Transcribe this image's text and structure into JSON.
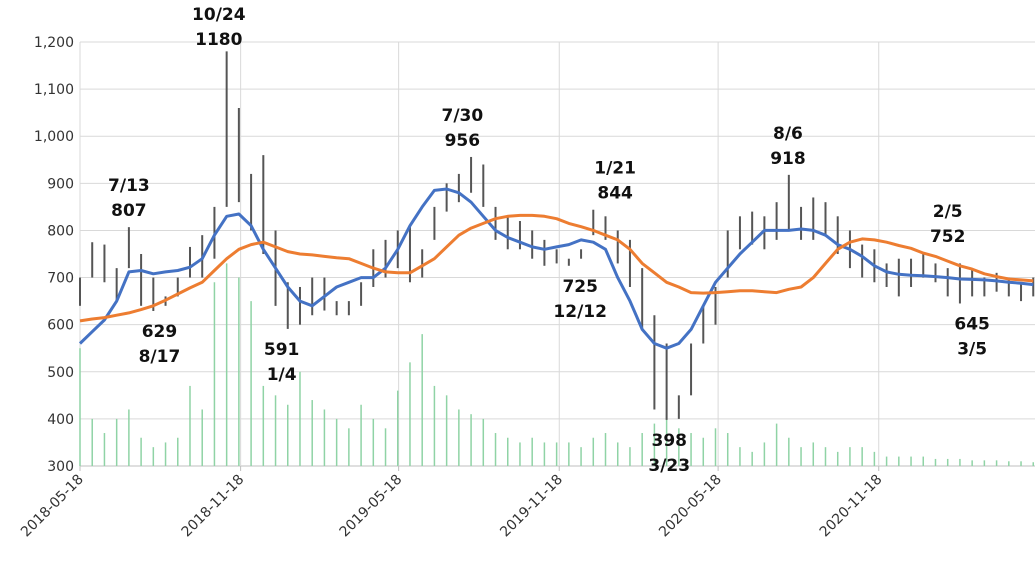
{
  "chart_data": {
    "type": "stock",
    "x": [
      "2018-05-18",
      "2018-06-01",
      "2018-06-15",
      "2018-06-29",
      "2018-07-13",
      "2018-07-27",
      "2018-08-10",
      "2018-08-24",
      "2018-09-07",
      "2018-09-21",
      "2018-10-05",
      "2018-10-19",
      "2018-11-02",
      "2018-11-16",
      "2018-11-30",
      "2018-12-14",
      "2018-12-28",
      "2019-01-11",
      "2019-01-25",
      "2019-02-08",
      "2019-02-22",
      "2019-03-08",
      "2019-03-22",
      "2019-04-05",
      "2019-04-19",
      "2019-05-03",
      "2019-05-17",
      "2019-05-31",
      "2019-06-14",
      "2019-06-28",
      "2019-07-12",
      "2019-07-26",
      "2019-08-09",
      "2019-08-23",
      "2019-09-06",
      "2019-09-20",
      "2019-10-04",
      "2019-10-18",
      "2019-11-01",
      "2019-11-15",
      "2019-11-29",
      "2019-12-13",
      "2019-12-27",
      "2020-01-10",
      "2020-01-24",
      "2020-02-07",
      "2020-02-21",
      "2020-03-06",
      "2020-03-20",
      "2020-04-03",
      "2020-04-17",
      "2020-05-01",
      "2020-05-15",
      "2020-05-29",
      "2020-06-12",
      "2020-06-26",
      "2020-07-10",
      "2020-07-24",
      "2020-08-07",
      "2020-08-21",
      "2020-09-04",
      "2020-09-18",
      "2020-10-02",
      "2020-10-16",
      "2020-10-30",
      "2020-11-13",
      "2020-11-27",
      "2020-12-11",
      "2020-12-25",
      "2021-01-08",
      "2021-01-22",
      "2021-02-05",
      "2021-02-19",
      "2021-03-05",
      "2021-03-19",
      "2021-04-02",
      "2021-04-16",
      "2021-04-30",
      "2021-05-14"
    ],
    "high": [
      700,
      775,
      770,
      720,
      807,
      750,
      700,
      660,
      700,
      765,
      790,
      850,
      1180,
      1060,
      920,
      960,
      800,
      690,
      680,
      700,
      700,
      650,
      650,
      690,
      760,
      780,
      800,
      810,
      760,
      850,
      900,
      920,
      956,
      940,
      850,
      830,
      820,
      800,
      780,
      760,
      740,
      760,
      844,
      830,
      800,
      780,
      720,
      620,
      560,
      450,
      560,
      640,
      680,
      800,
      830,
      840,
      830,
      860,
      918,
      850,
      870,
      860,
      830,
      800,
      770,
      760,
      730,
      740,
      740,
      752,
      730,
      720,
      730,
      720,
      700,
      710,
      700,
      690,
      700
    ],
    "low": [
      640,
      700,
      690,
      650,
      720,
      640,
      629,
      640,
      660,
      700,
      700,
      740,
      850,
      860,
      800,
      750,
      640,
      591,
      600,
      620,
      630,
      620,
      620,
      640,
      680,
      700,
      720,
      690,
      700,
      780,
      840,
      860,
      880,
      850,
      780,
      760,
      760,
      740,
      725,
      730,
      725,
      740,
      790,
      780,
      730,
      680,
      590,
      420,
      398,
      400,
      450,
      560,
      600,
      700,
      760,
      770,
      760,
      780,
      800,
      780,
      780,
      790,
      750,
      720,
      700,
      690,
      680,
      660,
      680,
      700,
      690,
      660,
      645,
      660,
      660,
      670,
      660,
      650,
      660
    ],
    "volume": [
      550,
      400,
      370,
      400,
      420,
      360,
      340,
      350,
      360,
      470,
      420,
      690,
      730,
      700,
      650,
      470,
      450,
      430,
      500,
      440,
      420,
      400,
      380,
      430,
      400,
      380,
      460,
      520,
      580,
      470,
      450,
      420,
      410,
      400,
      370,
      360,
      350,
      360,
      350,
      350,
      350,
      340,
      360,
      370,
      350,
      340,
      370,
      390,
      410,
      380,
      370,
      360,
      380,
      370,
      340,
      330,
      350,
      390,
      360,
      340,
      350,
      340,
      330,
      340,
      340,
      330,
      320,
      320,
      320,
      320,
      315,
      315,
      315,
      312,
      312,
      312,
      310,
      310,
      308
    ],
    "volume_color": "#8fd3a5",
    "bar_color": "#555555",
    "series": [
      {
        "color": "#4472c4",
        "values": [
          560,
          585,
          610,
          650,
          712,
          715,
          708,
          712,
          715,
          722,
          740,
          790,
          830,
          835,
          810,
          760,
          720,
          680,
          650,
          640,
          660,
          680,
          690,
          700,
          700,
          720,
          760,
          810,
          850,
          885,
          888,
          880,
          860,
          830,
          800,
          785,
          775,
          765,
          760,
          765,
          770,
          780,
          775,
          760,
          700,
          650,
          590,
          560,
          550,
          560,
          590,
          640,
          690,
          720,
          750,
          775,
          800,
          800,
          800,
          803,
          800,
          790,
          770,
          760,
          745,
          725,
          712,
          707,
          705,
          704,
          702,
          700,
          697,
          696,
          695,
          693,
          690,
          688,
          685
        ]
      },
      {
        "color": "#ed7d31",
        "values": [
          608,
          612,
          615,
          620,
          625,
          632,
          640,
          652,
          665,
          678,
          690,
          715,
          740,
          760,
          770,
          775,
          765,
          755,
          750,
          748,
          745,
          742,
          740,
          730,
          720,
          712,
          710,
          710,
          725,
          740,
          765,
          790,
          805,
          815,
          825,
          830,
          832,
          832,
          830,
          825,
          815,
          808,
          800,
          790,
          780,
          760,
          730,
          710,
          690,
          680,
          668,
          667,
          668,
          670,
          672,
          672,
          670,
          668,
          675,
          680,
          700,
          730,
          760,
          775,
          782,
          780,
          775,
          768,
          762,
          752,
          745,
          735,
          725,
          718,
          708,
          702,
          697,
          695,
          693
        ]
      }
    ],
    "annotations": [
      {
        "date": "7/13",
        "value": 807,
        "x": "2018-07-13",
        "position": "above"
      },
      {
        "value": 629,
        "date": "8/17",
        "x": "2018-08-17",
        "position": "below"
      },
      {
        "date": "10/24",
        "value": 1180,
        "x": "2018-10-24",
        "position": "above"
      },
      {
        "value": 591,
        "date": "1/4",
        "x": "2019-01-04",
        "position": "below"
      },
      {
        "date": "7/30",
        "value": 956,
        "x": "2019-07-30",
        "position": "above"
      },
      {
        "value": 725,
        "date": "12/12",
        "x": "2019-12-12",
        "position": "below"
      },
      {
        "date": "1/21",
        "value": 844,
        "x": "2020-01-21",
        "position": "above"
      },
      {
        "value": 398,
        "date": "3/23",
        "x": "2020-03-23",
        "position": "below"
      },
      {
        "date": "8/6",
        "value": 918,
        "x": "2020-08-06",
        "position": "above"
      },
      {
        "date": "2/5",
        "value": 752,
        "x": "2021-02-05",
        "position": "above"
      },
      {
        "value": 645,
        "date": "3/5",
        "x": "2021-03-05",
        "position": "below"
      }
    ],
    "xlim": [
      "2018-05-18",
      "2021-05-16"
    ],
    "xticks": [
      "2018-05-18",
      "2018-11-18",
      "2019-05-18",
      "2019-11-18",
      "2020-05-18",
      "2020-11-18"
    ],
    "ylim": [
      300,
      1200
    ],
    "yticks": [
      300,
      400,
      500,
      600,
      700,
      800,
      900,
      {
        "value": 1000,
        "label": "1,000"
      },
      {
        "value": 1100,
        "label": "1,100"
      },
      {
        "value": 1200,
        "label": "1,200"
      }
    ],
    "grid": true
  }
}
